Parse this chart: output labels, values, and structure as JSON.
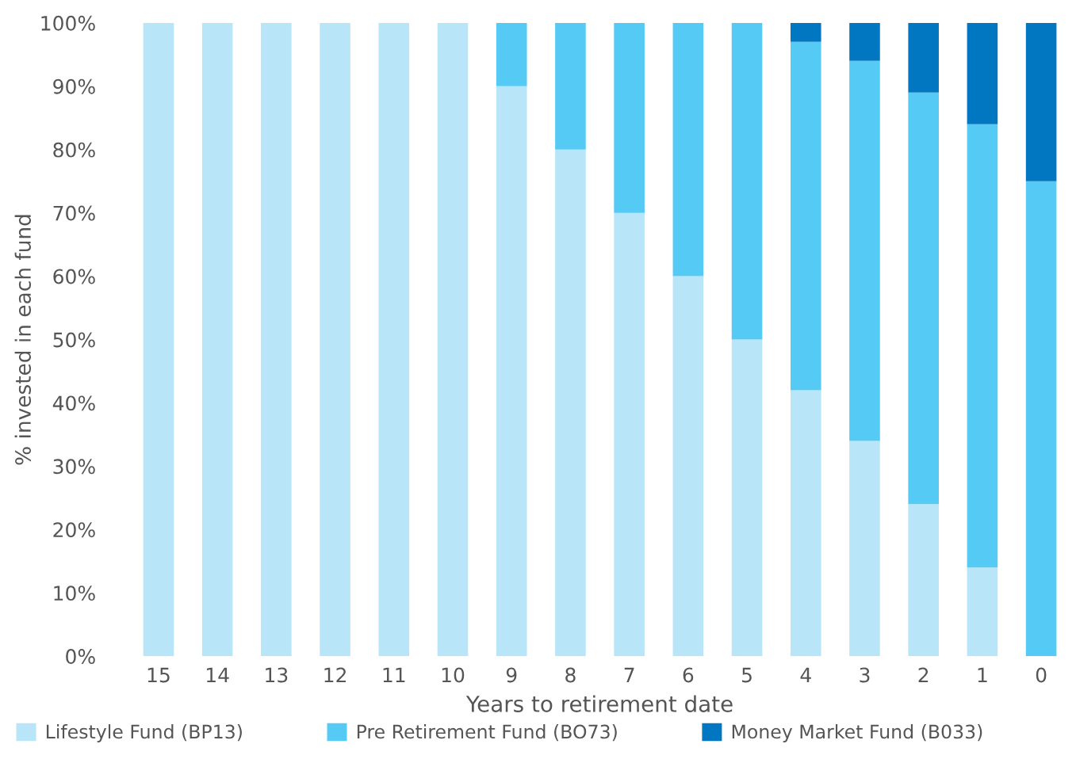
{
  "chart_data": {
    "type": "bar",
    "stacked": true,
    "xlabel": "Years to retirement date",
    "ylabel": "% invested in each fund",
    "categories": [
      "15",
      "14",
      "13",
      "12",
      "11",
      "10",
      "9",
      "8",
      "7",
      "6",
      "5",
      "4",
      "3",
      "2",
      "1",
      "0"
    ],
    "series": [
      {
        "name": "Lifestyle Fund (BP13)",
        "color": "#b9e5f9",
        "values": [
          100,
          100,
          100,
          100,
          100,
          100,
          90,
          80,
          70,
          60,
          50,
          42,
          34,
          24,
          14,
          0
        ]
      },
      {
        "name": "Pre Retirement Fund (BO73)",
        "color": "#55caf5",
        "values": [
          0,
          0,
          0,
          0,
          0,
          0,
          10,
          20,
          30,
          40,
          50,
          55,
          60,
          65,
          70,
          75
        ]
      },
      {
        "name": "Money Market Fund (B033)",
        "color": "#0077c0",
        "values": [
          0,
          0,
          0,
          0,
          0,
          0,
          0,
          0,
          0,
          0,
          0,
          3,
          6,
          11,
          16,
          25
        ]
      }
    ],
    "ylim": [
      0,
      100
    ],
    "yticks": [
      {
        "value": 0,
        "label": "0%"
      },
      {
        "value": 10,
        "label": "10%"
      },
      {
        "value": 20,
        "label": "20%"
      },
      {
        "value": 30,
        "label": "30%"
      },
      {
        "value": 40,
        "label": "40%"
      },
      {
        "value": 50,
        "label": "50%"
      },
      {
        "value": 60,
        "label": "60%"
      },
      {
        "value": 70,
        "label": "70%"
      },
      {
        "value": 80,
        "label": "80%"
      },
      {
        "value": 90,
        "label": "90%"
      },
      {
        "value": 100,
        "label": "100%"
      }
    ],
    "grid": false,
    "legend": "bottom"
  }
}
